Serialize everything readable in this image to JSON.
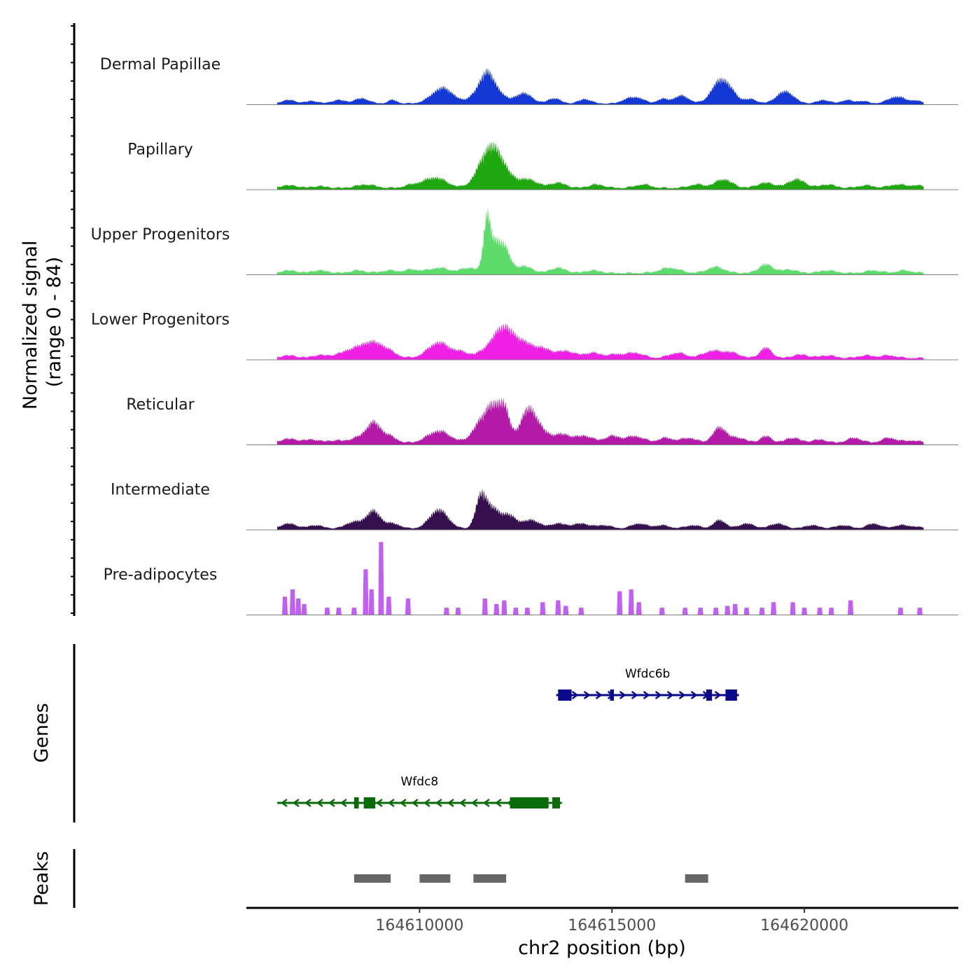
{
  "chart_data": {
    "type": "area",
    "title": "",
    "chromosome": "chr2",
    "xlabel": "chr2 position (bp)",
    "ylabel": "Normalized signal\n(range 0 - 84)",
    "ylabel_line1": "Normalized signal",
    "ylabel_line2": "(range 0 - 84)",
    "xlim": [
      164605500,
      164624000
    ],
    "signal_range": [
      0,
      84
    ],
    "x_ticks": [
      164610000,
      164615000,
      164620000
    ],
    "x_tick_labels": [
      "164610000",
      "164615000",
      "164620000"
    ],
    "region": [
      164606300,
      164623100
    ],
    "tracks": [
      {
        "name": "Dermal Papillae",
        "color": "#1438d6",
        "peaks": [
          [
            164606600,
            4,
            180
          ],
          [
            164607200,
            3,
            150
          ],
          [
            164607900,
            4,
            180
          ],
          [
            164608500,
            6,
            180
          ],
          [
            164609300,
            4,
            120
          ],
          [
            164610600,
            18,
            280
          ],
          [
            164611400,
            8,
            150
          ],
          [
            164611700,
            26,
            160
          ],
          [
            164611850,
            14,
            150
          ],
          [
            164612100,
            10,
            160
          ],
          [
            164612700,
            12,
            220
          ],
          [
            164613500,
            6,
            160
          ],
          [
            164614300,
            5,
            160
          ],
          [
            164615400,
            5,
            160
          ],
          [
            164615700,
            6,
            160
          ],
          [
            164616300,
            5,
            140
          ],
          [
            164616800,
            9,
            200
          ],
          [
            164617800,
            25,
            220
          ],
          [
            164618100,
            9,
            180
          ],
          [
            164618600,
            5,
            160
          ],
          [
            164619500,
            14,
            220
          ],
          [
            164620500,
            4,
            160
          ],
          [
            164621100,
            4,
            140
          ],
          [
            164621500,
            3,
            140
          ],
          [
            164622400,
            8,
            220
          ],
          [
            164622900,
            3,
            140
          ]
        ],
        "baseline": 2
      },
      {
        "name": "Papillary",
        "color": "#1fa70f",
        "peaks": [
          [
            164606600,
            3,
            220
          ],
          [
            164607400,
            2,
            180
          ],
          [
            164608600,
            4,
            240
          ],
          [
            164609800,
            3,
            200
          ],
          [
            164610400,
            12,
            300
          ],
          [
            164611700,
            30,
            240
          ],
          [
            164611950,
            22,
            200
          ],
          [
            164612200,
            16,
            220
          ],
          [
            164612800,
            10,
            260
          ],
          [
            164613600,
            6,
            200
          ],
          [
            164614600,
            4,
            200
          ],
          [
            164615800,
            4,
            200
          ],
          [
            164617200,
            4,
            200
          ],
          [
            164617900,
            10,
            220
          ],
          [
            164619000,
            6,
            220
          ],
          [
            164619800,
            10,
            220
          ],
          [
            164620600,
            4,
            200
          ],
          [
            164621600,
            3,
            200
          ],
          [
            164622400,
            4,
            200
          ],
          [
            164622900,
            3,
            180
          ]
        ],
        "baseline": 3
      },
      {
        "name": "Upper Progenitors",
        "color": "#5ddc6c",
        "peaks": [
          [
            164606600,
            3,
            200
          ],
          [
            164607400,
            3,
            200
          ],
          [
            164608400,
            3,
            200
          ],
          [
            164609200,
            3,
            200
          ],
          [
            164609800,
            4,
            200
          ],
          [
            164610500,
            6,
            260
          ],
          [
            164611300,
            6,
            220
          ],
          [
            164611750,
            60,
            90
          ],
          [
            164611950,
            28,
            120
          ],
          [
            164612200,
            30,
            140
          ],
          [
            164612700,
            8,
            220
          ],
          [
            164613600,
            6,
            200
          ],
          [
            164614500,
            3,
            200
          ],
          [
            164616500,
            6,
            260
          ],
          [
            164617700,
            7,
            220
          ],
          [
            164619000,
            10,
            180
          ],
          [
            164619600,
            4,
            200
          ],
          [
            164620600,
            3,
            200
          ],
          [
            164621800,
            3,
            200
          ],
          [
            164622600,
            3,
            200
          ]
        ],
        "baseline": 3
      },
      {
        "name": "Lower Progenitors",
        "color": "#f01fe6",
        "peaks": [
          [
            164606600,
            3,
            200
          ],
          [
            164607400,
            3,
            200
          ],
          [
            164608300,
            10,
            350
          ],
          [
            164608800,
            14,
            260
          ],
          [
            164609200,
            6,
            220
          ],
          [
            164610500,
            18,
            280
          ],
          [
            164611100,
            6,
            200
          ],
          [
            164611800,
            10,
            250
          ],
          [
            164612200,
            32,
            240
          ],
          [
            164612700,
            16,
            240
          ],
          [
            164613200,
            10,
            220
          ],
          [
            164613800,
            8,
            240
          ],
          [
            164614500,
            6,
            220
          ],
          [
            164615100,
            4,
            200
          ],
          [
            164615600,
            6,
            220
          ],
          [
            164616700,
            6,
            220
          ],
          [
            164617600,
            8,
            240
          ],
          [
            164618100,
            6,
            220
          ],
          [
            164619000,
            12,
            150
          ],
          [
            164619900,
            4,
            200
          ],
          [
            164620600,
            3,
            200
          ],
          [
            164621600,
            3,
            200
          ],
          [
            164622200,
            3,
            200
          ]
        ],
        "baseline": 3
      },
      {
        "name": "Reticular",
        "color": "#b31aa8",
        "peaks": [
          [
            164606600,
            5,
            220
          ],
          [
            164607200,
            4,
            200
          ],
          [
            164607800,
            3,
            200
          ],
          [
            164608400,
            6,
            220
          ],
          [
            164608800,
            22,
            180
          ],
          [
            164609200,
            8,
            200
          ],
          [
            164610500,
            14,
            300
          ],
          [
            164611600,
            24,
            220
          ],
          [
            164611900,
            32,
            160
          ],
          [
            164612200,
            40,
            140
          ],
          [
            164612800,
            34,
            200
          ],
          [
            164613100,
            14,
            220
          ],
          [
            164613700,
            10,
            240
          ],
          [
            164614300,
            8,
            220
          ],
          [
            164615000,
            8,
            200
          ],
          [
            164615600,
            8,
            240
          ],
          [
            164616400,
            6,
            200
          ],
          [
            164617000,
            6,
            200
          ],
          [
            164617800,
            18,
            180
          ],
          [
            164618300,
            6,
            200
          ],
          [
            164619000,
            8,
            150
          ],
          [
            164619700,
            6,
            200
          ],
          [
            164620400,
            4,
            200
          ],
          [
            164621300,
            6,
            200
          ],
          [
            164622200,
            6,
            200
          ],
          [
            164622800,
            3,
            200
          ]
        ],
        "baseline": 3
      },
      {
        "name": "Intermediate",
        "color": "#36104e",
        "peaks": [
          [
            164606600,
            6,
            200
          ],
          [
            164607300,
            4,
            200
          ],
          [
            164608300,
            8,
            220
          ],
          [
            164608800,
            20,
            180
          ],
          [
            164609300,
            6,
            200
          ],
          [
            164610500,
            22,
            240
          ],
          [
            164611600,
            38,
            140
          ],
          [
            164611900,
            20,
            160
          ],
          [
            164612300,
            16,
            200
          ],
          [
            164612900,
            10,
            220
          ],
          [
            164613600,
            6,
            200
          ],
          [
            164614200,
            6,
            220
          ],
          [
            164614800,
            4,
            200
          ],
          [
            164615700,
            6,
            200
          ],
          [
            164616300,
            4,
            200
          ],
          [
            164617100,
            4,
            200
          ],
          [
            164617800,
            10,
            160
          ],
          [
            164618500,
            6,
            200
          ],
          [
            164619300,
            6,
            200
          ],
          [
            164620200,
            4,
            200
          ],
          [
            164621000,
            4,
            200
          ],
          [
            164621800,
            6,
            180
          ],
          [
            164622500,
            4,
            200
          ],
          [
            164622900,
            2,
            180
          ]
        ],
        "baseline": 2
      },
      {
        "name": "Pre-adipocytes",
        "color": "#c15ef5",
        "spikes": [
          [
            164606500,
            20
          ],
          [
            164606700,
            28
          ],
          [
            164606850,
            18
          ],
          [
            164607000,
            12
          ],
          [
            164607600,
            8
          ],
          [
            164607900,
            8
          ],
          [
            164608300,
            8
          ],
          [
            164608600,
            50
          ],
          [
            164608750,
            28
          ],
          [
            164609000,
            80
          ],
          [
            164609200,
            20
          ],
          [
            164609700,
            18
          ],
          [
            164610700,
            8
          ],
          [
            164611000,
            8
          ],
          [
            164611700,
            18
          ],
          [
            164612000,
            12
          ],
          [
            164612200,
            16
          ],
          [
            164612500,
            8
          ],
          [
            164612800,
            8
          ],
          [
            164613200,
            14
          ],
          [
            164613600,
            16
          ],
          [
            164613800,
            10
          ],
          [
            164614200,
            8
          ],
          [
            164615200,
            26
          ],
          [
            164615500,
            28
          ],
          [
            164615700,
            14
          ],
          [
            164616300,
            8
          ],
          [
            164616900,
            8
          ],
          [
            164617300,
            8
          ],
          [
            164617700,
            8
          ],
          [
            164618000,
            10
          ],
          [
            164618200,
            12
          ],
          [
            164618500,
            8
          ],
          [
            164618900,
            8
          ],
          [
            164619200,
            14
          ],
          [
            164619700,
            14
          ],
          [
            164620000,
            8
          ],
          [
            164620400,
            8
          ],
          [
            164620700,
            8
          ],
          [
            164621200,
            16
          ],
          [
            164622500,
            8
          ],
          [
            164623000,
            8
          ]
        ],
        "baseline": 0
      }
    ],
    "genes": [
      {
        "name": "Wfdc6b",
        "strand": "+",
        "start": 164613550,
        "end": 164618300,
        "color": "#0a0a8a",
        "exons": [
          [
            164613600,
            164613950
          ],
          [
            164614950,
            164615050
          ],
          [
            164617450,
            164617600
          ],
          [
            164617950,
            164618250
          ]
        ]
      },
      {
        "name": "Wfdc8",
        "strand": "-",
        "start": 164606300,
        "end": 164613700,
        "color": "#0a6b0a",
        "exons": [
          [
            164608300,
            164608420
          ],
          [
            164608550,
            164608850
          ],
          [
            164612350,
            164613350
          ],
          [
            164613450,
            164613650
          ]
        ]
      }
    ],
    "peaks": [
      [
        164608300,
        164609250
      ],
      [
        164610000,
        164610800
      ],
      [
        164611400,
        164612250
      ],
      [
        164616900,
        164617500
      ]
    ],
    "peak_color": "#666666",
    "panel_labels": {
      "genes": "Genes",
      "peaks": "Peaks"
    }
  }
}
